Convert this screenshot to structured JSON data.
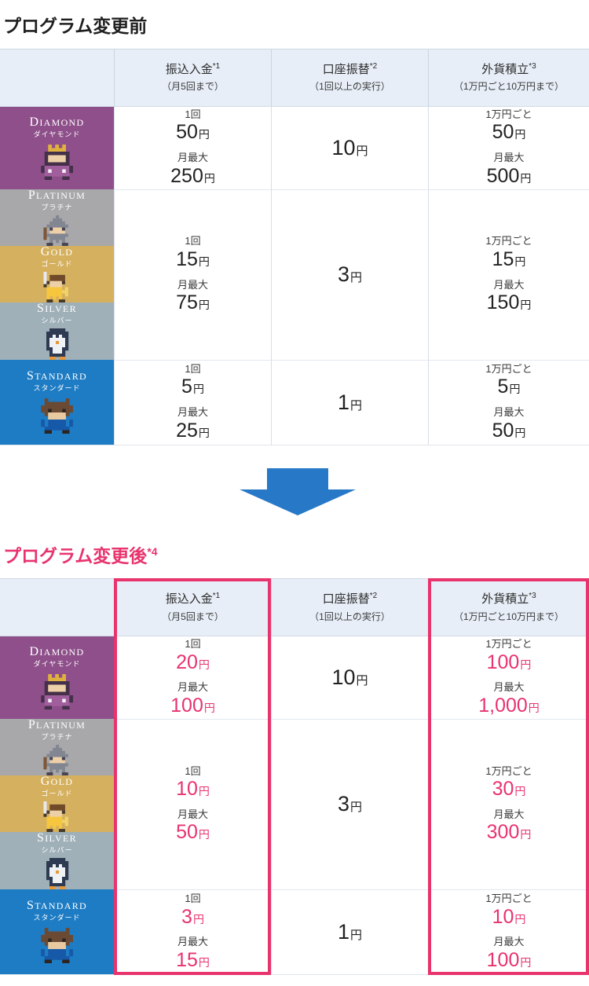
{
  "titles": {
    "before": "プログラム変更前",
    "after": "プログラム変更後",
    "after_note": "*4"
  },
  "units": {
    "yen": "円"
  },
  "header": {
    "deposit": {
      "title": "振込入金",
      "note": "*1",
      "sub": "（月5回まで）"
    },
    "debit": {
      "title": "口座振替",
      "note": "*2",
      "sub": "（1回以上の実行）"
    },
    "fx": {
      "title": "外貨積立",
      "note": "*3",
      "sub": "（1万円ごと10万円まで）"
    }
  },
  "labels": {
    "per_time": "1回",
    "monthly_max": "月最大",
    "per_10k": "1万円ごと"
  },
  "tiers": {
    "diamond": {
      "en": "DIAMOND",
      "ja": "ダイヤモンド",
      "color": "#8e4f8a"
    },
    "platinum": {
      "en": "PLATINUM",
      "ja": "プラチナ",
      "color": "#a8a8ab"
    },
    "gold": {
      "en": "GOLD",
      "ja": "ゴールド",
      "color": "#d5b05e"
    },
    "silver": {
      "en": "SILVER",
      "ja": "シルバー",
      "color": "#9fb0b8"
    },
    "standard": {
      "en": "STANDARD",
      "ja": "スタンダード",
      "color": "#1e7cc4"
    }
  },
  "before": {
    "diamond": {
      "deposit_per": "50",
      "deposit_max": "250",
      "debit": "10",
      "fx_per": "50",
      "fx_max": "500"
    },
    "middle": {
      "deposit_per": "15",
      "deposit_max": "75",
      "debit": "3",
      "fx_per": "15",
      "fx_max": "150"
    },
    "standard": {
      "deposit_per": "5",
      "deposit_max": "25",
      "debit": "1",
      "fx_per": "5",
      "fx_max": "50"
    }
  },
  "after": {
    "diamond": {
      "deposit_per": "20",
      "deposit_max": "100",
      "debit": "10",
      "fx_per": "100",
      "fx_max": "1,000"
    },
    "middle": {
      "deposit_per": "10",
      "deposit_max": "50",
      "debit": "3",
      "fx_per": "30",
      "fx_max": "300"
    },
    "standard": {
      "deposit_per": "3",
      "deposit_max": "15",
      "debit": "1",
      "fx_per": "10",
      "fx_max": "100"
    }
  },
  "colors": {
    "accent_pink": "#e8336d",
    "arrow_blue": "#2878c8",
    "header_bg": "#e7eef7"
  }
}
